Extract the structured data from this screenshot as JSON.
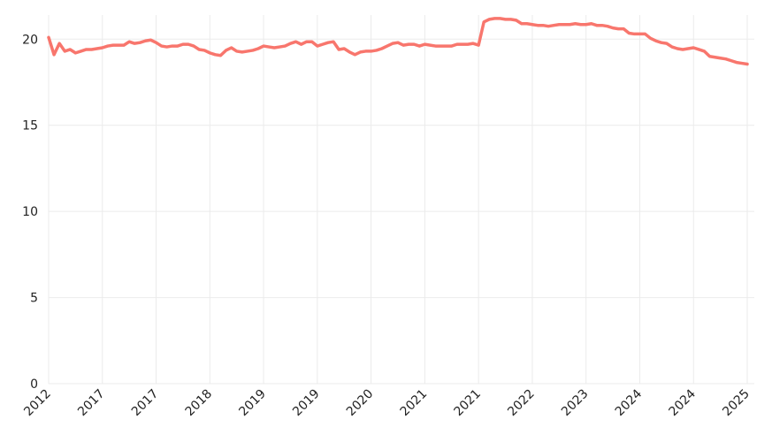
{
  "chart_data": {
    "type": "line",
    "categories": [
      "2012",
      null,
      null,
      null,
      null,
      null,
      null,
      null,
      null,
      null,
      "2017",
      null,
      null,
      null,
      null,
      null,
      null,
      null,
      null,
      null,
      "2017",
      null,
      null,
      null,
      null,
      null,
      null,
      null,
      null,
      null,
      "2018",
      null,
      null,
      null,
      null,
      null,
      null,
      null,
      null,
      null,
      "2019",
      null,
      null,
      null,
      null,
      null,
      null,
      null,
      null,
      null,
      "2019",
      null,
      null,
      null,
      null,
      null,
      null,
      null,
      null,
      null,
      "2020",
      null,
      null,
      null,
      null,
      null,
      null,
      null,
      null,
      null,
      "2021",
      null,
      null,
      null,
      null,
      null,
      null,
      null,
      null,
      null,
      "2021",
      null,
      null,
      null,
      null,
      null,
      null,
      null,
      null,
      null,
      "2022",
      null,
      null,
      null,
      null,
      null,
      null,
      null,
      null,
      null,
      "2023",
      null,
      null,
      null,
      null,
      null,
      null,
      null,
      null,
      null,
      "2024",
      null,
      null,
      null,
      null,
      null,
      null,
      null,
      null,
      null,
      "2024",
      null,
      null,
      null,
      null,
      null,
      null,
      null,
      null,
      null,
      "2025"
    ],
    "values": [
      20.1,
      19.1,
      19.75,
      19.3,
      19.4,
      19.2,
      19.3,
      19.4,
      19.4,
      19.45,
      19.5,
      19.6,
      19.65,
      19.65,
      19.65,
      19.85,
      19.75,
      19.8,
      19.9,
      19.95,
      19.8,
      19.6,
      19.55,
      19.6,
      19.6,
      19.7,
      19.7,
      19.6,
      19.4,
      19.35,
      19.2,
      19.1,
      19.05,
      19.35,
      19.5,
      19.3,
      19.25,
      19.3,
      19.35,
      19.45,
      19.6,
      19.55,
      19.5,
      19.55,
      19.6,
      19.75,
      19.85,
      19.7,
      19.85,
      19.85,
      19.6,
      19.7,
      19.8,
      19.85,
      19.4,
      19.45,
      19.25,
      19.1,
      19.25,
      19.3,
      19.3,
      19.35,
      19.45,
      19.6,
      19.75,
      19.8,
      19.65,
      19.7,
      19.7,
      19.6,
      19.7,
      19.65,
      19.6,
      19.6,
      19.6,
      19.6,
      19.7,
      19.7,
      19.7,
      19.75,
      19.65,
      21.0,
      21.15,
      21.2,
      21.2,
      21.15,
      21.15,
      21.1,
      20.9,
      20.9,
      20.85,
      20.8,
      20.8,
      20.75,
      20.8,
      20.85,
      20.85,
      20.85,
      20.9,
      20.85,
      20.85,
      20.9,
      20.8,
      20.8,
      20.75,
      20.65,
      20.6,
      20.6,
      20.35,
      20.3,
      20.3,
      20.3,
      20.05,
      19.9,
      19.8,
      19.75,
      19.55,
      19.45,
      19.4,
      19.45,
      19.5,
      19.4,
      19.3,
      19.0,
      18.95,
      18.9,
      18.85,
      18.75,
      18.65,
      18.6,
      18.55
    ],
    "color": "#f8766d",
    "ylim": [
      0,
      21.4
    ],
    "yticks": [
      0,
      5,
      10,
      15,
      20
    ],
    "grid": true
  }
}
